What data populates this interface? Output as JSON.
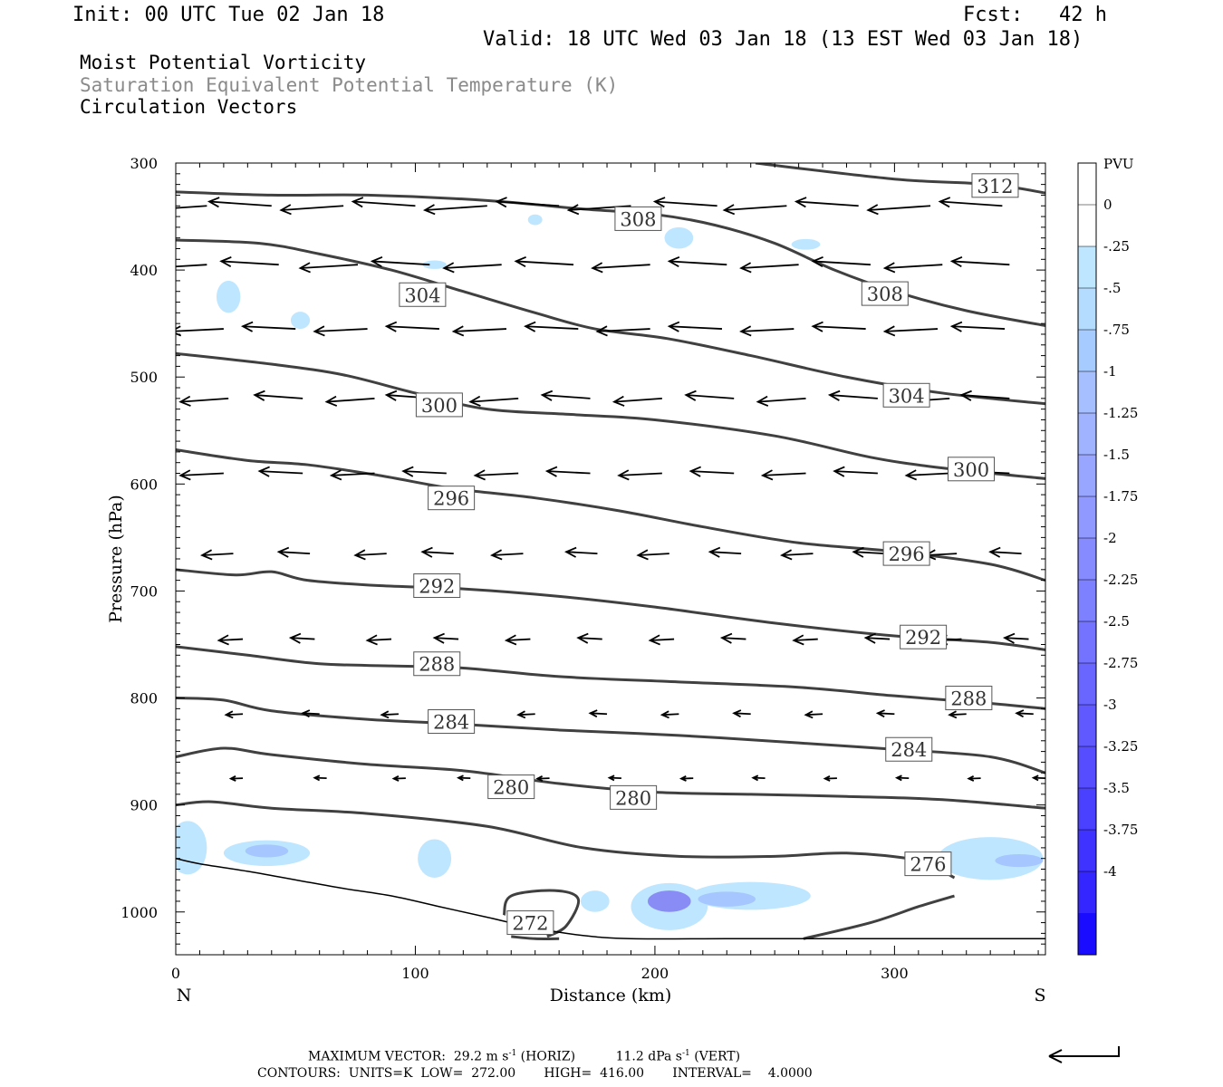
{
  "header": {
    "init": "Init: 00 UTC Tue 02 Jan 18",
    "fcst": "Fcst:   42 h",
    "valid": "Valid: 18 UTC Wed 03 Jan 18 (13 EST Wed 03 Jan 18)"
  },
  "titles": {
    "line1": "Moist Potential Vorticity",
    "line2": "Saturation Equivalent Potential Temperature (K)",
    "line3": "Circulation Vectors"
  },
  "footer": {
    "max_vector_label": "MAXIMUM VECTOR:",
    "horiz_value": "29.2 m s",
    "horiz_unit": "(HORIZ)",
    "vert_value": "11.2 dPa s",
    "vert_unit": "(VERT)",
    "exponent": "-1",
    "contours_line": "CONTOURS:  UNITS=K  LOW=  272.00       HIGH=  416.00       INTERVAL=    4.0000"
  },
  "colors": {
    "contour": "#404040",
    "vector": "#000000",
    "shade_light": "#bfe6ff",
    "shade_mid": "#a6c6ff",
    "shade_dark": "#8a8cf5",
    "shade_darkest": "#6f66f0"
  },
  "chart_data": {
    "type": "cross-section",
    "xlabel": "Distance (km)",
    "ylabel": "Pressure (hPa)",
    "xlim": [
      0,
      363
    ],
    "ylim": [
      300,
      1040
    ],
    "y_scale": "linear-inverted",
    "x_ticks": [
      0,
      100,
      200,
      300
    ],
    "y_ticks": [
      300,
      400,
      500,
      600,
      700,
      800,
      900,
      1000
    ],
    "x_end_labels": {
      "left": "N",
      "right": "S"
    },
    "colorbar": {
      "unit": "PVU",
      "ticks": [
        "0",
        "-.25",
        "-.5",
        "-.75",
        "-1",
        "-1.25",
        "-1.5",
        "-1.75",
        "-2",
        "-2.25",
        "-2.5",
        "-2.75",
        "-3",
        "-3.25",
        "-3.5",
        "-3.75",
        "-4"
      ],
      "colors": [
        "#ffffff",
        "#ffffff",
        "#bfe6ff",
        "#b4dcff",
        "#a6cbff",
        "#a6c0ff",
        "#9fb3ff",
        "#98a6ff",
        "#8f99ff",
        "#868cff",
        "#7d80ff",
        "#7373ff",
        "#6966ff",
        "#5f59ff",
        "#554dff",
        "#4a40ff",
        "#3f33ff",
        "#3326ff",
        "#1a0dff"
      ]
    },
    "contours": [
      {
        "label": "312",
        "points": [
          [
            242,
            300
          ],
          [
            300,
            315
          ],
          [
            340,
            320
          ],
          [
            363,
            328
          ]
        ],
        "labels_at": [
          [
            342,
            321
          ]
        ]
      },
      {
        "label": "308",
        "points": [
          [
            0,
            327
          ],
          [
            40,
            330
          ],
          [
            80,
            330
          ],
          [
            130,
            335
          ],
          [
            170,
            343
          ],
          [
            200,
            348
          ],
          [
            225,
            358
          ],
          [
            250,
            375
          ],
          [
            275,
            400
          ],
          [
            300,
            420
          ],
          [
            330,
            438
          ],
          [
            363,
            452
          ]
        ],
        "labels_at": [
          [
            193,
            352
          ],
          [
            296,
            422
          ]
        ]
      },
      {
        "label": "304",
        "points": [
          [
            0,
            372
          ],
          [
            35,
            375
          ],
          [
            60,
            385
          ],
          [
            90,
            400
          ],
          [
            120,
            420
          ],
          [
            150,
            440
          ],
          [
            175,
            455
          ],
          [
            205,
            464
          ],
          [
            240,
            480
          ],
          [
            280,
            500
          ],
          [
            320,
            515
          ],
          [
            363,
            525
          ]
        ],
        "labels_at": [
          [
            103,
            423
          ],
          [
            305,
            517
          ]
        ]
      },
      {
        "label": "300",
        "points": [
          [
            0,
            478
          ],
          [
            40,
            488
          ],
          [
            70,
            498
          ],
          [
            100,
            515
          ],
          [
            130,
            530
          ],
          [
            165,
            535
          ],
          [
            200,
            540
          ],
          [
            250,
            555
          ],
          [
            290,
            575
          ],
          [
            320,
            585
          ],
          [
            363,
            595
          ]
        ],
        "labels_at": [
          [
            110,
            526
          ],
          [
            332,
            586
          ]
        ]
      },
      {
        "label": "296",
        "points": [
          [
            0,
            568
          ],
          [
            30,
            578
          ],
          [
            55,
            582
          ],
          [
            85,
            592
          ],
          [
            115,
            604
          ],
          [
            150,
            613
          ],
          [
            185,
            625
          ],
          [
            220,
            640
          ],
          [
            260,
            655
          ],
          [
            300,
            663
          ],
          [
            340,
            675
          ],
          [
            363,
            690
          ]
        ],
        "labels_at": [
          [
            115,
            613
          ],
          [
            305,
            665
          ]
        ]
      },
      {
        "label": "292",
        "points": [
          [
            0,
            680
          ],
          [
            25,
            685
          ],
          [
            40,
            682
          ],
          [
            55,
            690
          ],
          [
            85,
            695
          ],
          [
            120,
            698
          ],
          [
            160,
            705
          ],
          [
            200,
            715
          ],
          [
            250,
            730
          ],
          [
            300,
            742
          ],
          [
            340,
            748
          ],
          [
            363,
            755
          ]
        ],
        "labels_at": [
          [
            109,
            695
          ],
          [
            312,
            743
          ]
        ]
      },
      {
        "label": "288",
        "points": [
          [
            0,
            752
          ],
          [
            30,
            760
          ],
          [
            60,
            768
          ],
          [
            90,
            770
          ],
          [
            120,
            772
          ],
          [
            160,
            780
          ],
          [
            210,
            785
          ],
          [
            260,
            790
          ],
          [
            300,
            798
          ],
          [
            340,
            805
          ],
          [
            363,
            810
          ]
        ],
        "labels_at": [
          [
            109,
            768
          ],
          [
            331,
            800
          ]
        ]
      },
      {
        "label": "284",
        "points": [
          [
            0,
            800
          ],
          [
            20,
            802
          ],
          [
            40,
            812
          ],
          [
            80,
            820
          ],
          [
            115,
            824
          ],
          [
            160,
            830
          ],
          [
            210,
            835
          ],
          [
            260,
            842
          ],
          [
            300,
            848
          ],
          [
            340,
            855
          ],
          [
            363,
            870
          ]
        ],
        "labels_at": [
          [
            115,
            822
          ],
          [
            306,
            848
          ]
        ]
      },
      {
        "label": "280",
        "points": [
          [
            0,
            855
          ],
          [
            20,
            847
          ],
          [
            40,
            853
          ],
          [
            80,
            862
          ],
          [
            120,
            868
          ],
          [
            160,
            880
          ],
          [
            200,
            888
          ],
          [
            240,
            890
          ],
          [
            280,
            892
          ],
          [
            320,
            895
          ],
          [
            363,
            903
          ]
        ],
        "labels_at": [
          [
            140,
            883
          ],
          [
            191,
            893
          ]
        ]
      },
      {
        "label": "276",
        "points": [
          [
            0,
            900
          ],
          [
            15,
            897
          ],
          [
            40,
            903
          ],
          [
            80,
            908
          ],
          [
            130,
            920
          ],
          [
            170,
            940
          ],
          [
            210,
            948
          ],
          [
            250,
            948
          ],
          [
            280,
            945
          ],
          [
            310,
            952
          ],
          [
            325,
            968
          ]
        ],
        "labels_at": [
          [
            314,
            955
          ]
        ]
      },
      {
        "label": "272",
        "points": [
          [
            140,
            1023
          ],
          [
            150,
            1025
          ],
          [
            160,
            1025
          ]
        ],
        "labels_at": [
          [
            148,
            1010
          ]
        ]
      }
    ],
    "inner_contours": [
      {
        "points": [
          [
            137,
            1003
          ],
          [
            140,
            985
          ],
          [
            158,
            980
          ],
          [
            168,
            988
          ],
          [
            163,
            1013
          ],
          [
            155,
            1023
          ]
        ]
      },
      {
        "points": [
          [
            262,
            1025
          ],
          [
            290,
            1010
          ],
          [
            310,
            995
          ],
          [
            325,
            985
          ]
        ]
      }
    ],
    "terrain": [
      [
        0,
        950
      ],
      [
        10,
        955
      ],
      [
        30,
        962
      ],
      [
        50,
        970
      ],
      [
        70,
        978
      ],
      [
        90,
        985
      ],
      [
        110,
        995
      ],
      [
        130,
        1005
      ],
      [
        150,
        1015
      ],
      [
        170,
        1022
      ],
      [
        190,
        1025
      ],
      [
        230,
        1025
      ],
      [
        270,
        1025
      ],
      [
        320,
        1025
      ],
      [
        363,
        1025
      ]
    ],
    "pv_shading": [
      {
        "cx": 5,
        "cy": 940,
        "rx": 8,
        "ry": 25,
        "level": 1
      },
      {
        "cx": 38,
        "cy": 945,
        "rx": 18,
        "ry": 12,
        "level": 1
      },
      {
        "cx": 38,
        "cy": 943,
        "rx": 9,
        "ry": 6,
        "level": 2
      },
      {
        "cx": 108,
        "cy": 950,
        "rx": 7,
        "ry": 18,
        "level": 1
      },
      {
        "cx": 206,
        "cy": 995,
        "rx": 16,
        "ry": 22,
        "level": 1
      },
      {
        "cx": 206,
        "cy": 990,
        "rx": 9,
        "ry": 10,
        "level": 3
      },
      {
        "cx": 240,
        "cy": 985,
        "rx": 25,
        "ry": 13,
        "level": 1
      },
      {
        "cx": 230,
        "cy": 988,
        "rx": 12,
        "ry": 7,
        "level": 2
      },
      {
        "cx": 340,
        "cy": 950,
        "rx": 22,
        "ry": 20,
        "level": 1
      },
      {
        "cx": 352,
        "cy": 952,
        "rx": 10,
        "ry": 6,
        "level": 2
      },
      {
        "cx": 175,
        "cy": 990,
        "rx": 6,
        "ry": 10,
        "level": 1
      },
      {
        "cx": 22,
        "cy": 425,
        "rx": 5,
        "ry": 15,
        "level": 1
      },
      {
        "cx": 52,
        "cy": 447,
        "rx": 4,
        "ry": 8,
        "level": 1
      },
      {
        "cx": 210,
        "cy": 370,
        "rx": 6,
        "ry": 10,
        "level": 1
      },
      {
        "cx": 263,
        "cy": 376,
        "rx": 6,
        "ry": 5,
        "level": 1
      },
      {
        "cx": 150,
        "cy": 353,
        "rx": 3,
        "ry": 5,
        "level": 1
      },
      {
        "cx": 108,
        "cy": 395,
        "rx": 5,
        "ry": 4,
        "level": 1
      }
    ],
    "vector_rows": [
      {
        "p": 340,
        "xs": [
          5,
          32,
          62,
          92,
          122,
          152,
          182,
          218,
          247,
          277,
          307,
          337
        ],
        "dx": -26,
        "dp": 10
      },
      {
        "p": 395,
        "xs": [
          5,
          35,
          68,
          98,
          128,
          158,
          190,
          222,
          252,
          282,
          312,
          340
        ],
        "dx": -24,
        "dp": 8
      },
      {
        "p": 455,
        "xs": [
          12,
          42,
          72,
          102,
          130,
          160,
          190,
          220,
          250,
          280,
          310,
          338
        ],
        "dx": -22,
        "dp": 6
      },
      {
        "p": 520,
        "xs": [
          14,
          45,
          75,
          100,
          135,
          165,
          195,
          225,
          255,
          285,
          315,
          340
        ],
        "dx": -20,
        "dp": 8
      },
      {
        "p": 590,
        "xs": [
          12,
          45,
          75,
          105,
          135,
          165,
          195,
          225,
          255,
          285,
          315,
          340
        ],
        "dx": -18,
        "dp": 5
      },
      {
        "p": 665,
        "xs": [
          16,
          48,
          80,
          108,
          137,
          168,
          198,
          228,
          258,
          288,
          318,
          345
        ],
        "dx": -13,
        "dp": 4
      },
      {
        "p": 745,
        "xs": [
          20,
          50,
          82,
          110,
          140,
          170,
          200,
          230,
          260,
          290,
          320,
          348
        ],
        "dx": -10,
        "dp": 3
      },
      {
        "p": 815,
        "xs": [
          20,
          52,
          85,
          112,
          142,
          172,
          202,
          232,
          262,
          292,
          322,
          350
        ],
        "dx": -7,
        "dp": 2
      },
      {
        "p": 875,
        "xs": [
          20,
          55,
          88,
          115,
          148,
          178,
          208,
          238,
          268,
          298,
          328,
          355
        ],
        "dx": -5,
        "dp": 1
      }
    ],
    "vector_legend": {
      "description": "reference vector"
    }
  }
}
